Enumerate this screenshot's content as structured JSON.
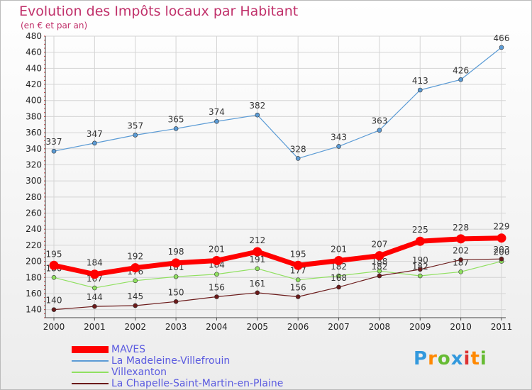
{
  "chart_data": {
    "type": "line",
    "title": "Evolution des Impôts locaux par Habitant",
    "subtitle": "(en € et par an)",
    "categories": [
      "2000",
      "2001",
      "2002",
      "2003",
      "2004",
      "2005",
      "2006",
      "2007",
      "2008",
      "2009",
      "2010",
      "2011"
    ],
    "ylim": [
      130,
      480
    ],
    "yticks": [
      140,
      160,
      180,
      200,
      220,
      240,
      260,
      280,
      300,
      320,
      340,
      360,
      380,
      400,
      420,
      440,
      460,
      480
    ],
    "grid": true,
    "legend": "bottom-left",
    "series": [
      {
        "name": "La Madeleine-Villefrouin",
        "color": "#5b9bd5",
        "values": [
          337,
          347,
          357,
          365,
          374,
          382,
          328,
          343,
          363,
          413,
          426,
          466
        ],
        "labels": [
          "337",
          "347",
          "357",
          "365",
          "374",
          "382",
          "328",
          "343",
          "363",
          "413",
          "426",
          "466"
        ]
      },
      {
        "name": "Villexanton",
        "color": "#90e060",
        "values": [
          180,
          167,
          176,
          181,
          184,
          191,
          177,
          182,
          188,
          182,
          187,
          200
        ],
        "labels": [
          "180",
          "167",
          "176",
          "181",
          "184",
          "191",
          "177",
          "182",
          "188",
          "182",
          "187",
          "200"
        ]
      },
      {
        "name": "La Chapelle-Saint-Martin-en-Plaine",
        "color": "#6b1a1a",
        "values": [
          140,
          144,
          145,
          150,
          156,
          161,
          156,
          168,
          182,
          190,
          202,
          203
        ],
        "labels": [
          "140",
          "144",
          "145",
          "150",
          "156",
          "161",
          "156",
          "168",
          "182",
          "190",
          "202",
          "203"
        ]
      },
      {
        "name": "MAVES",
        "color": "#ff0000",
        "values": [
          195,
          184,
          192,
          198,
          201,
          212,
          195,
          201,
          207,
          225,
          228,
          229
        ],
        "labels": [
          "195",
          "184",
          "192",
          "198",
          "201",
          "212",
          "195",
          "201",
          "207",
          "225",
          "228",
          "229"
        ]
      }
    ]
  },
  "logo": {
    "letters": [
      "P",
      "r",
      "o",
      "x",
      "i",
      "t",
      "i"
    ],
    "colors": [
      "#3399dd",
      "#ff8800",
      "#66bb33",
      "#3399dd",
      "#dd3333",
      "#ff8800",
      "#66bb33"
    ]
  }
}
